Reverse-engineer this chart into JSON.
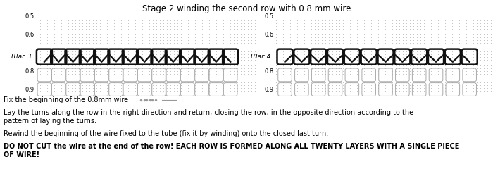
{
  "title": "Stage 2 winding the second row with 0.8 mm wire",
  "title_fontsize": 8.5,
  "label_left": "Шаг 3",
  "label_right": "Шаг 4",
  "text_lines": [
    "Fix the beginning of the 0.8mm wire",
    "Lay the turns along the row in the right direction and return, closing the row, in the opposite direction according to the",
    "pattern of laying the turns.",
    "Rewind the beginning of the wire fixed to the tube (fix it by winding) onto the closed last turn.",
    "DO NOT CUT the wire at the end of the row! EACH ROW IS FORMED ALONG ALL TWENTY LAYERS WITH A SINGLE PIECE",
    "OF WIRE!"
  ],
  "bg_color": "#ffffff",
  "dot_color": "#bbbbbb",
  "ring_color_light": "#aaaaaa",
  "ring_color_dark": "#111111",
  "ring_lw_light": 0.7,
  "ring_lw_dark": 1.8,
  "axis_ticks_left": [
    "0.5",
    "0.6",
    "0.8",
    "0.9"
  ],
  "axis_ticks_right": [
    "0.5",
    "0.6",
    "0.8",
    "0.9"
  ]
}
